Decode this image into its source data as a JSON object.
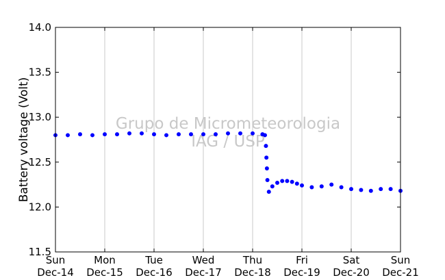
{
  "chart_data": {
    "type": "scatter",
    "title": "",
    "xlabel": "",
    "ylabel": "Battery voltage (Volt)",
    "watermark": [
      "Grupo de Micrometeorologia",
      "IAG / USP"
    ],
    "x_axis": {
      "unit": "days since Sun Dec-14 00:00",
      "range": [
        0,
        7
      ],
      "ticks": [
        {
          "value": 0,
          "day": "Sun",
          "date": "Dec-14"
        },
        {
          "value": 1,
          "day": "Mon",
          "date": "Dec-15"
        },
        {
          "value": 2,
          "day": "Tue",
          "date": "Dec-16"
        },
        {
          "value": 3,
          "day": "Wed",
          "date": "Dec-17"
        },
        {
          "value": 4,
          "day": "Thu",
          "date": "Dec-18"
        },
        {
          "value": 5,
          "day": "Fri",
          "date": "Dec-19"
        },
        {
          "value": 6,
          "day": "Sat",
          "date": "Dec-20"
        },
        {
          "value": 7,
          "day": "Sun",
          "date": "Dec-21"
        }
      ],
      "grid": true
    },
    "y_axis": {
      "range": [
        11.5,
        14.0
      ],
      "ticks": [
        "11.5",
        "12.0",
        "12.5",
        "13.0",
        "13.5",
        "14.0"
      ],
      "grid": false
    },
    "series": [
      {
        "color": "#0000ff",
        "x": [
          0,
          0.25,
          0.5,
          0.75,
          1.0,
          1.25,
          1.5,
          1.75,
          2.0,
          2.25,
          2.5,
          2.75,
          3.0,
          3.25,
          3.5,
          3.75,
          4.0,
          4.2,
          4.25,
          4.27,
          4.28,
          4.29,
          4.3,
          4.33,
          4.4,
          4.5,
          4.6,
          4.7,
          4.8,
          4.9,
          5.0,
          5.2,
          5.4,
          5.6,
          5.8,
          6.0,
          6.2,
          6.4,
          6.6,
          6.8,
          7.0
        ],
        "y": [
          12.8,
          12.8,
          12.81,
          12.8,
          12.81,
          12.81,
          12.82,
          12.82,
          12.81,
          12.8,
          12.81,
          12.81,
          12.81,
          12.81,
          12.82,
          12.82,
          12.82,
          12.81,
          12.8,
          12.68,
          12.55,
          12.43,
          12.3,
          12.17,
          12.23,
          12.27,
          12.29,
          12.29,
          12.28,
          12.26,
          12.24,
          12.22,
          12.23,
          12.25,
          12.22,
          12.2,
          12.19,
          12.18,
          12.2,
          12.2,
          12.18
        ]
      }
    ]
  }
}
